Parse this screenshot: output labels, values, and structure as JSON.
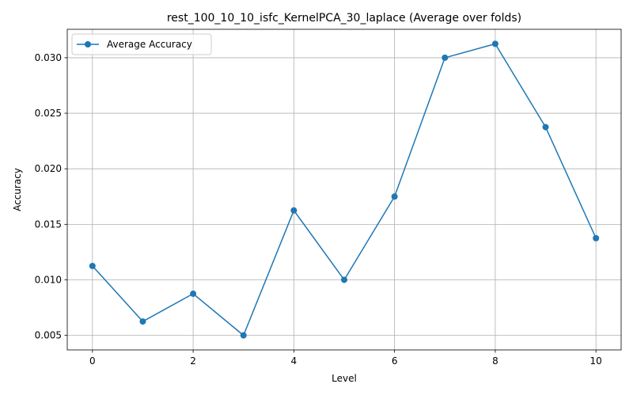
{
  "chart_data": {
    "type": "line",
    "title": "rest_100_10_10_isfc_KernelPCA_30_laplace (Average over folds)",
    "xlabel": "Level",
    "ylabel": "Accuracy",
    "x": [
      0,
      1,
      2,
      3,
      4,
      5,
      6,
      7,
      8,
      9,
      10
    ],
    "series": [
      {
        "name": "Average Accuracy",
        "values": [
          0.01125,
          0.00625,
          0.00875,
          0.005,
          0.01625,
          0.01,
          0.0175,
          0.03,
          0.03125,
          0.02375,
          0.01375
        ],
        "color": "#1f77b4",
        "marker": "circle"
      }
    ],
    "xlim": [
      -0.5,
      10.5
    ],
    "ylim": [
      0.00369,
      0.03256
    ],
    "xticks": [
      0,
      2,
      4,
      6,
      8,
      10
    ],
    "xtick_labels": [
      "0",
      "2",
      "4",
      "6",
      "8",
      "10"
    ],
    "yticks": [
      0.005,
      0.01,
      0.015,
      0.02,
      0.025,
      0.03
    ],
    "ytick_labels": [
      "0.005",
      "0.010",
      "0.015",
      "0.020",
      "0.025",
      "0.030"
    ],
    "grid": true,
    "legend_position": "top-left"
  }
}
